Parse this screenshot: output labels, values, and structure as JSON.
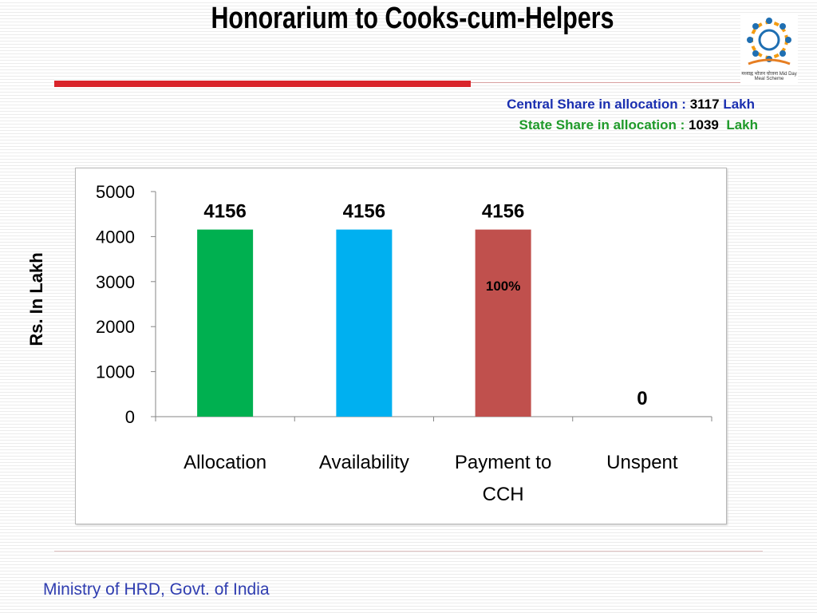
{
  "slide": {
    "title": "Honorarium to Cooks-cum-Helpers",
    "logo_text": "मध्याह्न भोजन योजना Mid Day Meal Scheme",
    "central_label": "Central Share in allocation : ",
    "central_value": "3117",
    "central_unit": " Lakh",
    "state_label": "State Share in allocation : ",
    "state_value": "1039",
    "state_unit": "  Lakh",
    "footer": "Ministry of HRD, Govt. of India",
    "colors": {
      "title_rule": "#d9242a",
      "central_text": "#1a2fb0",
      "state_text": "#1f9a2a",
      "footer_text": "#2f3db0"
    }
  },
  "chart_data": {
    "type": "bar",
    "title": "",
    "ylabel": "Rs. In Lakh",
    "xlabel": "",
    "ylim": [
      0,
      5000
    ],
    "yticks": [
      "0",
      "1000",
      "2000",
      "3000",
      "4000",
      "5000"
    ],
    "categories": [
      {
        "lines": [
          "Allocation"
        ]
      },
      {
        "lines": [
          "Availability"
        ]
      },
      {
        "lines": [
          "Payment to",
          "CCH"
        ]
      },
      {
        "lines": [
          "Unspent"
        ]
      }
    ],
    "values": [
      4156,
      4156,
      4156,
      0
    ],
    "value_labels": [
      "4156",
      "4156",
      "4156",
      "0"
    ],
    "bar_colors": [
      "#00b050",
      "#00b0f0",
      "#c0504d",
      "#4f81bd"
    ],
    "annotations": [
      {
        "category_index": 2,
        "text": "100%"
      }
    ],
    "grid": false,
    "legend": "none"
  }
}
